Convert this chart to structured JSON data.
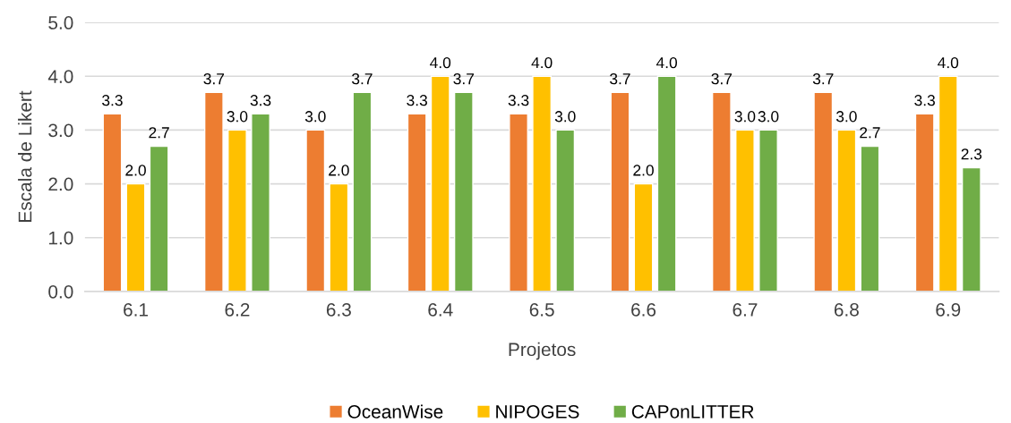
{
  "chart_data": {
    "type": "bar",
    "xlabel": "Projetos",
    "ylabel": "Escala de Likert",
    "categories": [
      "6.1",
      "6.2",
      "6.3",
      "6.4",
      "6.5",
      "6.6",
      "6.7",
      "6.8",
      "6.9"
    ],
    "series": [
      {
        "name": "OceanWise",
        "color": "#ed7d31",
        "values": [
          3.3,
          3.7,
          3.0,
          3.3,
          3.3,
          3.7,
          3.7,
          3.7,
          3.3
        ],
        "value_labels": [
          "3.3",
          "3.7",
          "3.0",
          "3.3",
          "3.3",
          "3.7",
          "3.7",
          "3.7",
          "3.3"
        ]
      },
      {
        "name": "NIPOGES",
        "color": "#ffc000",
        "values": [
          2.0,
          3.0,
          2.0,
          4.0,
          4.0,
          2.0,
          3.0,
          3.0,
          4.0
        ],
        "value_labels": [
          "2.0",
          "3.0",
          "2.0",
          "4.0",
          "4.0",
          "2.0",
          "3.0",
          "3.0",
          "4.0"
        ]
      },
      {
        "name": "CAPonLITTER",
        "color": "#70ad47",
        "values": [
          2.7,
          3.3,
          3.7,
          3.7,
          3.0,
          4.0,
          3.0,
          2.7,
          2.3
        ],
        "value_labels": [
          "2.7",
          "3.3",
          "3.7",
          "3.7",
          "3.0",
          "4.0",
          "3.0",
          "2.7",
          "2.3"
        ]
      }
    ],
    "ylim": [
      0,
      5
    ],
    "yticks": [
      {
        "value": 0,
        "label": "0.0"
      },
      {
        "value": 1,
        "label": "1.0"
      },
      {
        "value": 2,
        "label": "2.0"
      },
      {
        "value": 3,
        "label": "3.0"
      },
      {
        "value": 4,
        "label": "4.0"
      },
      {
        "value": 5,
        "label": "5.0"
      }
    ],
    "grid": "y",
    "legend": "bottom"
  }
}
